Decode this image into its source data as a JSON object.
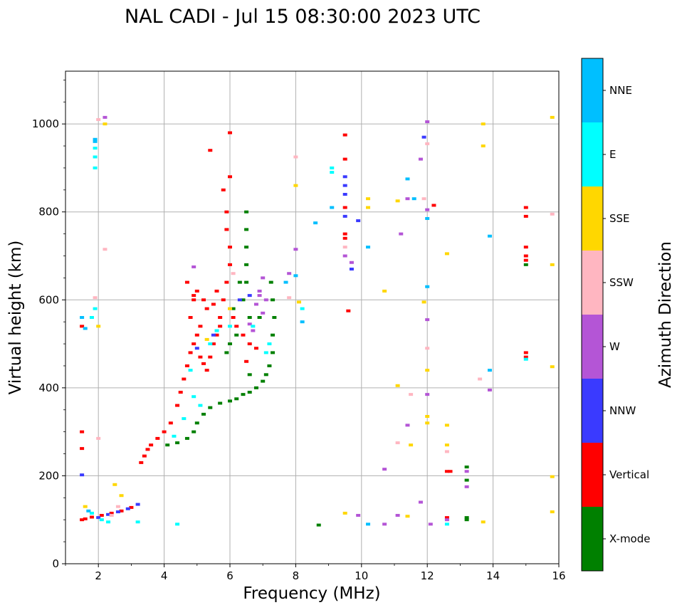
{
  "chart_data": {
    "type": "scatter",
    "title": "NAL CADI - Jul 15 08:30:00 2023 UTC",
    "xlabel": "Frequency (MHz)",
    "ylabel": "Virtual height (km)",
    "xlim": [
      1,
      16
    ],
    "ylim": [
      0,
      1120
    ],
    "x_ticks": [
      2,
      4,
      6,
      8,
      10,
      12,
      14,
      16
    ],
    "y_ticks": [
      0,
      200,
      400,
      600,
      800,
      1000
    ],
    "grid": true,
    "colorbar": {
      "label": "Azimuth Direction",
      "position": "right",
      "categories": [
        {
          "name": "X-mode",
          "color": "#008000"
        },
        {
          "name": "Vertical",
          "color": "#ff0000"
        },
        {
          "name": "NNW",
          "color": "#3a3aff"
        },
        {
          "name": "W",
          "color": "#b455d6"
        },
        {
          "name": "SSW",
          "color": "#ffb6c1"
        },
        {
          "name": "SSE",
          "color": "#ffd700"
        },
        {
          "name": "E",
          "color": "#00ffff"
        },
        {
          "name": "NNE",
          "color": "#00bfff"
        }
      ]
    },
    "series": [
      {
        "name": "Vertical",
        "points": [
          [
            1.5,
            100
          ],
          [
            1.6,
            102
          ],
          [
            1.8,
            106
          ],
          [
            2.1,
            110
          ],
          [
            2.4,
            115
          ],
          [
            2.7,
            120
          ],
          [
            3.0,
            128
          ],
          [
            1.5,
            540
          ],
          [
            1.5,
            300
          ],
          [
            1.5,
            262
          ],
          [
            3.3,
            230
          ],
          [
            3.4,
            245
          ],
          [
            3.5,
            260
          ],
          [
            3.6,
            270
          ],
          [
            3.8,
            285
          ],
          [
            4.0,
            300
          ],
          [
            4.2,
            320
          ],
          [
            4.4,
            360
          ],
          [
            4.5,
            390
          ],
          [
            4.6,
            420
          ],
          [
            4.7,
            450
          ],
          [
            4.8,
            480
          ],
          [
            4.9,
            500
          ],
          [
            5.0,
            520
          ],
          [
            4.8,
            560
          ],
          [
            4.9,
            600
          ],
          [
            5.0,
            620
          ],
          [
            5.1,
            470
          ],
          [
            5.2,
            455
          ],
          [
            5.3,
            440
          ],
          [
            5.4,
            470
          ],
          [
            5.5,
            500
          ],
          [
            5.6,
            520
          ],
          [
            5.7,
            560
          ],
          [
            5.8,
            600
          ],
          [
            5.9,
            640
          ],
          [
            6.0,
            680
          ],
          [
            6.0,
            720
          ],
          [
            5.9,
            760
          ],
          [
            5.9,
            800
          ],
          [
            5.8,
            850
          ],
          [
            6.0,
            880
          ],
          [
            6.0,
            980
          ],
          [
            5.4,
            940
          ],
          [
            5.6,
            620
          ],
          [
            5.3,
            580
          ],
          [
            5.1,
            540
          ],
          [
            4.7,
            640
          ],
          [
            4.9,
            610
          ],
          [
            5.2,
            600
          ],
          [
            5.5,
            590
          ],
          [
            6.2,
            540
          ],
          [
            6.4,
            520
          ],
          [
            6.6,
            500
          ],
          [
            6.8,
            490
          ],
          [
            6.5,
            460
          ],
          [
            5.7,
            540
          ],
          [
            6.1,
            560
          ],
          [
            9.5,
            740
          ],
          [
            9.5,
            750
          ],
          [
            9.5,
            975
          ],
          [
            9.5,
            920
          ],
          [
            9.5,
            810
          ],
          [
            9.6,
            575
          ],
          [
            15.0,
            700
          ],
          [
            15.0,
            720
          ],
          [
            15.0,
            690
          ],
          [
            15.0,
            480
          ],
          [
            15.0,
            470
          ],
          [
            15.0,
            810
          ],
          [
            15.0,
            790
          ],
          [
            12.6,
            210
          ],
          [
            12.7,
            210
          ],
          [
            12.6,
            105
          ],
          [
            12.2,
            815
          ]
        ]
      },
      {
        "name": "X-mode",
        "points": [
          [
            4.1,
            270
          ],
          [
            4.4,
            275
          ],
          [
            4.7,
            285
          ],
          [
            4.9,
            300
          ],
          [
            5.0,
            320
          ],
          [
            5.2,
            340
          ],
          [
            5.4,
            355
          ],
          [
            5.7,
            365
          ],
          [
            6.0,
            370
          ],
          [
            6.2,
            375
          ],
          [
            6.4,
            385
          ],
          [
            6.6,
            390
          ],
          [
            6.8,
            400
          ],
          [
            7.0,
            415
          ],
          [
            7.1,
            430
          ],
          [
            7.2,
            450
          ],
          [
            7.3,
            480
          ],
          [
            7.3,
            520
          ],
          [
            7.35,
            560
          ],
          [
            7.3,
            600
          ],
          [
            7.25,
            640
          ],
          [
            6.5,
            640
          ],
          [
            6.5,
            680
          ],
          [
            6.5,
            720
          ],
          [
            6.5,
            760
          ],
          [
            6.5,
            800
          ],
          [
            6.6,
            560
          ],
          [
            6.9,
            560
          ],
          [
            6.4,
            600
          ],
          [
            6.3,
            640
          ],
          [
            6.2,
            520
          ],
          [
            6.0,
            500
          ],
          [
            5.9,
            480
          ],
          [
            6.6,
            430
          ],
          [
            6.1,
            580
          ],
          [
            13.2,
            100
          ],
          [
            13.2,
            105
          ],
          [
            13.2,
            220
          ],
          [
            13.2,
            190
          ],
          [
            8.7,
            88
          ],
          [
            15.0,
            680
          ]
        ]
      },
      {
        "name": "NNW",
        "points": [
          [
            2.0,
            105
          ],
          [
            2.3,
            112
          ],
          [
            2.6,
            118
          ],
          [
            2.9,
            125
          ],
          [
            3.2,
            135
          ],
          [
            1.5,
            202
          ],
          [
            9.5,
            860
          ],
          [
            9.5,
            880
          ],
          [
            9.5,
            840
          ],
          [
            9.5,
            790
          ],
          [
            9.7,
            670
          ],
          [
            9.9,
            780
          ],
          [
            11.9,
            970
          ],
          [
            5.5,
            520
          ],
          [
            5.0,
            490
          ],
          [
            6.3,
            600
          ],
          [
            6.6,
            610
          ]
        ]
      },
      {
        "name": "W",
        "points": [
          [
            2.2,
            1015
          ],
          [
            4.9,
            675
          ],
          [
            6.9,
            610
          ],
          [
            6.9,
            620
          ],
          [
            7.0,
            650
          ],
          [
            7.1,
            600
          ],
          [
            6.8,
            590
          ],
          [
            7.0,
            570
          ],
          [
            6.6,
            545
          ],
          [
            6.7,
            530
          ],
          [
            7.8,
            660
          ],
          [
            8.0,
            715
          ],
          [
            9.5,
            700
          ],
          [
            9.7,
            685
          ],
          [
            9.9,
            110
          ],
          [
            11.2,
            750
          ],
          [
            11.4,
            830
          ],
          [
            11.4,
            315
          ],
          [
            12.0,
            1005
          ],
          [
            11.8,
            920
          ],
          [
            12.0,
            555
          ],
          [
            12.0,
            385
          ],
          [
            12.1,
            90
          ],
          [
            12.6,
            100
          ],
          [
            13.2,
            210
          ],
          [
            13.2,
            175
          ],
          [
            13.9,
            395
          ],
          [
            11.8,
            140
          ],
          [
            10.7,
            215
          ],
          [
            11.1,
            110
          ],
          [
            10.7,
            90
          ],
          [
            12.0,
            805
          ]
        ]
      },
      {
        "name": "SSW",
        "points": [
          [
            2.0,
            1010
          ],
          [
            2.2,
            715
          ],
          [
            1.9,
            605
          ],
          [
            2.0,
            285
          ],
          [
            2.4,
            110
          ],
          [
            2.6,
            130
          ],
          [
            9.5,
            720
          ],
          [
            7.8,
            605
          ],
          [
            8.0,
            925
          ],
          [
            11.1,
            275
          ],
          [
            11.5,
            385
          ],
          [
            11.9,
            830
          ],
          [
            12.0,
            490
          ],
          [
            12.6,
            255
          ],
          [
            13.6,
            420
          ],
          [
            15.8,
            795
          ],
          [
            12.0,
            955
          ],
          [
            6.1,
            660
          ]
        ]
      },
      {
        "name": "SSE",
        "points": [
          [
            1.6,
            130
          ],
          [
            2.2,
            1000
          ],
          [
            2.0,
            540
          ],
          [
            2.5,
            180
          ],
          [
            2.7,
            155
          ],
          [
            8.0,
            860
          ],
          [
            8.1,
            595
          ],
          [
            9.5,
            115
          ],
          [
            10.2,
            830
          ],
          [
            10.2,
            810
          ],
          [
            10.7,
            620
          ],
          [
            11.1,
            405
          ],
          [
            11.1,
            825
          ],
          [
            11.4,
            108
          ],
          [
            11.5,
            270
          ],
          [
            11.9,
            595
          ],
          [
            12.0,
            440
          ],
          [
            12.0,
            335
          ],
          [
            12.0,
            320
          ],
          [
            12.6,
            315
          ],
          [
            12.6,
            270
          ],
          [
            12.6,
            705
          ],
          [
            13.7,
            1000
          ],
          [
            13.7,
            950
          ],
          [
            13.7,
            95
          ],
          [
            15.8,
            1015
          ],
          [
            15.8,
            680
          ],
          [
            15.8,
            448
          ],
          [
            15.8,
            198
          ],
          [
            15.8,
            118
          ],
          [
            6.0,
            580
          ],
          [
            5.3,
            510
          ]
        ]
      },
      {
        "name": "E",
        "points": [
          [
            1.8,
            115
          ],
          [
            2.1,
            100
          ],
          [
            2.3,
            95
          ],
          [
            1.9,
            945
          ],
          [
            1.9,
            925
          ],
          [
            1.9,
            900
          ],
          [
            1.8,
            560
          ],
          [
            1.9,
            580
          ],
          [
            3.2,
            95
          ],
          [
            4.4,
            90
          ],
          [
            4.8,
            440
          ],
          [
            4.9,
            380
          ],
          [
            5.1,
            360
          ],
          [
            5.4,
            500
          ],
          [
            5.6,
            530
          ],
          [
            4.3,
            290
          ],
          [
            4.6,
            330
          ],
          [
            6.7,
            540
          ],
          [
            7.2,
            500
          ],
          [
            7.1,
            480
          ],
          [
            8.2,
            580
          ],
          [
            9.1,
            900
          ],
          [
            9.1,
            890
          ],
          [
            12.6,
            90
          ],
          [
            15.0,
            465
          ],
          [
            6.0,
            540
          ]
        ]
      },
      {
        "name": "NNE",
        "points": [
          [
            1.9,
            965
          ],
          [
            1.9,
            960
          ],
          [
            1.5,
            560
          ],
          [
            1.6,
            535
          ],
          [
            1.7,
            120
          ],
          [
            8.2,
            550
          ],
          [
            8.6,
            775
          ],
          [
            9.1,
            810
          ],
          [
            10.2,
            720
          ],
          [
            10.2,
            90
          ],
          [
            11.4,
            875
          ],
          [
            11.6,
            830
          ],
          [
            12.0,
            630
          ],
          [
            12.0,
            785
          ],
          [
            13.9,
            745
          ],
          [
            13.9,
            440
          ],
          [
            7.7,
            640
          ],
          [
            8.0,
            655
          ]
        ]
      }
    ]
  }
}
